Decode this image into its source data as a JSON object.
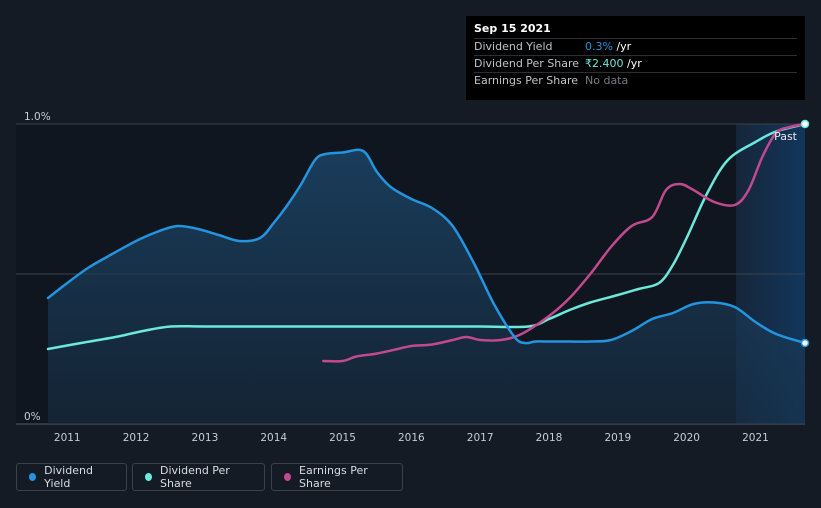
{
  "tooltip": {
    "date": "Sep 15 2021",
    "rows": [
      {
        "label": "Dividend Yield",
        "value": "0.3%",
        "unit": " /yr"
      },
      {
        "label": "Dividend Per Share",
        "value": "₹2.400",
        "unit": " /yr"
      },
      {
        "label": "Earnings Per Share",
        "value": "No data",
        "unit": ""
      }
    ]
  },
  "legend": [
    {
      "label": "Dividend Yield",
      "color": "#2394df"
    },
    {
      "label": "Dividend Per Share",
      "color": "#6ce8dc"
    },
    {
      "label": "Earnings Per Share",
      "color": "#c3498f"
    }
  ],
  "chart_data": {
    "type": "line",
    "title": "",
    "xlabel": "",
    "ylabel": "",
    "x_ticks": [
      "2011",
      "2012",
      "2013",
      "2014",
      "2015",
      "2016",
      "2017",
      "2018",
      "2019",
      "2020",
      "2021"
    ],
    "y_tick_labels": [
      "0%",
      "1.0%"
    ],
    "ylim": [
      0,
      1.0
    ],
    "xlim": [
      2010.72,
      2021.72
    ],
    "past_label": "Past",
    "series": [
      {
        "name": "Dividend Yield",
        "color": "#2394df",
        "x": [
          2010.72,
          2011.0,
          2011.3,
          2011.6,
          2012.0,
          2012.3,
          2012.6,
          2012.9,
          2013.2,
          2013.5,
          2013.8,
          2014.0,
          2014.2,
          2014.4,
          2014.6,
          2014.75,
          2015.0,
          2015.3,
          2015.5,
          2015.7,
          2016.0,
          2016.3,
          2016.6,
          2016.9,
          2017.2,
          2017.5,
          2017.65,
          2017.8,
          2018.0,
          2018.3,
          2018.6,
          2018.9,
          2019.2,
          2019.5,
          2019.8,
          2020.1,
          2020.4,
          2020.7,
          2021.0,
          2021.3,
          2021.72
        ],
        "y": [
          0.42,
          0.47,
          0.52,
          0.56,
          0.61,
          0.64,
          0.66,
          0.65,
          0.63,
          0.61,
          0.62,
          0.67,
          0.73,
          0.8,
          0.88,
          0.9,
          0.905,
          0.91,
          0.84,
          0.79,
          0.75,
          0.72,
          0.66,
          0.54,
          0.4,
          0.29,
          0.27,
          0.275,
          0.275,
          0.275,
          0.275,
          0.28,
          0.31,
          0.35,
          0.37,
          0.4,
          0.405,
          0.39,
          0.34,
          0.3,
          0.27
        ]
      },
      {
        "name": "Dividend Per Share",
        "color": "#6ce8dc",
        "x": [
          2010.72,
          2011.2,
          2011.7,
          2012.1,
          2012.5,
          2013.0,
          2014.0,
          2015.0,
          2016.0,
          2017.0,
          2017.7,
          2018.0,
          2018.3,
          2018.6,
          2019.0,
          2019.3,
          2019.6,
          2019.8,
          2020.0,
          2020.3,
          2020.6,
          2021.0,
          2021.3,
          2021.72
        ],
        "y": [
          0.25,
          0.27,
          0.29,
          0.31,
          0.325,
          0.325,
          0.325,
          0.325,
          0.325,
          0.325,
          0.325,
          0.35,
          0.38,
          0.405,
          0.43,
          0.45,
          0.47,
          0.53,
          0.62,
          0.77,
          0.88,
          0.94,
          0.975,
          1.0
        ]
      },
      {
        "name": "Earnings Per Share",
        "color": "#c3498f",
        "x": [
          2014.72,
          2015.0,
          2015.2,
          2015.5,
          2015.8,
          2016.0,
          2016.3,
          2016.6,
          2016.8,
          2017.0,
          2017.3,
          2017.6,
          2018.0,
          2018.3,
          2018.6,
          2018.9,
          2019.2,
          2019.5,
          2019.7,
          2019.9,
          2020.1,
          2020.4,
          2020.7,
          2020.9,
          2021.1,
          2021.3,
          2021.5,
          2021.72
        ],
        "y": [
          0.21,
          0.21,
          0.225,
          0.235,
          0.25,
          0.26,
          0.265,
          0.28,
          0.29,
          0.28,
          0.28,
          0.3,
          0.36,
          0.42,
          0.5,
          0.59,
          0.66,
          0.69,
          0.78,
          0.8,
          0.78,
          0.74,
          0.73,
          0.78,
          0.89,
          0.97,
          0.99,
          1.0
        ]
      }
    ]
  }
}
